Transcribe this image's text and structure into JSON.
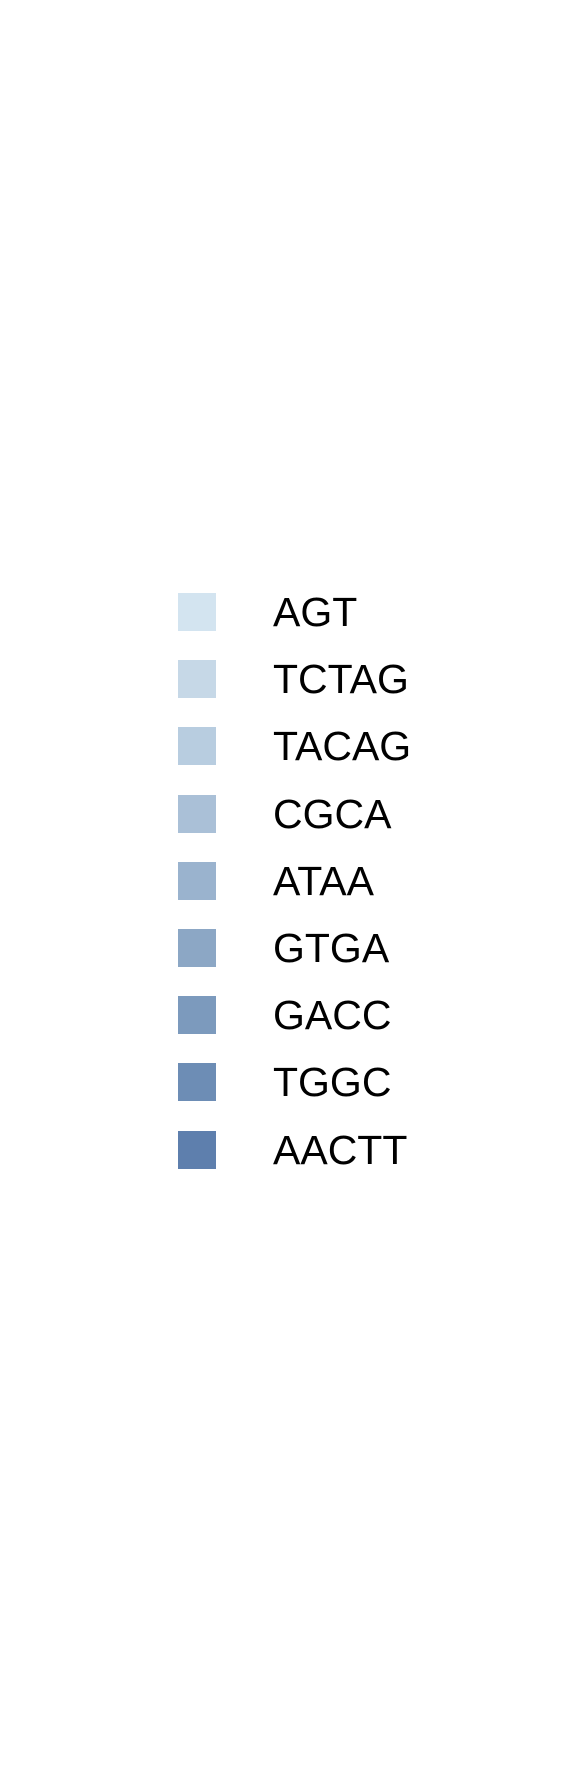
{
  "chart_data": {
    "type": "pie",
    "title": "",
    "legend": {
      "placement": "center",
      "entries": [
        {
          "label": "AGT",
          "color": "#d3e4f0"
        },
        {
          "label": "TCTAG",
          "color": "#c6d8e7"
        },
        {
          "label": "TACAG",
          "color": "#b8cde0"
        },
        {
          "label": "CGCA",
          "color": "#aac0d7"
        },
        {
          "label": "ATAA",
          "color": "#9ab3ce"
        },
        {
          "label": "GTGA",
          "color": "#8ca7c5"
        },
        {
          "label": "GACC",
          "color": "#7c9abd"
        },
        {
          "label": "TGGC",
          "color": "#6d8db5"
        },
        {
          "label": "AACTT",
          "color": "#5e7fad"
        }
      ]
    }
  }
}
